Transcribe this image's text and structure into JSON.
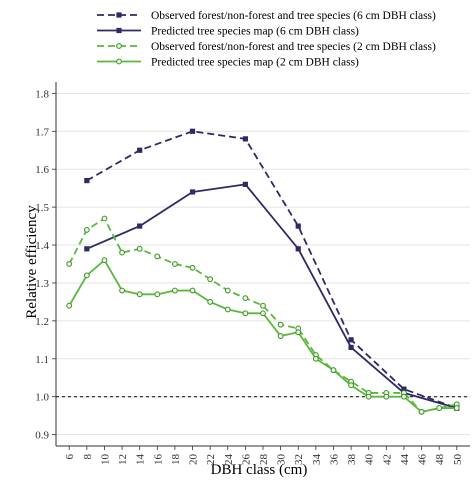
{
  "chart_data": {
    "type": "line",
    "xlabel": "DBH class (cm)",
    "ylabel": "Relative efficiency",
    "x_ticks": [
      6,
      8,
      10,
      12,
      14,
      16,
      18,
      20,
      22,
      24,
      26,
      28,
      30,
      32,
      34,
      36,
      38,
      40,
      42,
      44,
      46,
      48,
      50
    ],
    "y_ticks": [
      0.9,
      1.0,
      1.1,
      1.2,
      1.3,
      1.4,
      1.5,
      1.6,
      1.7,
      1.8
    ],
    "xlim": [
      4.5,
      51.5
    ],
    "ylim": [
      0.87,
      1.83
    ],
    "reference_line": 1.0,
    "grid": "horizontal",
    "legend_position": "top",
    "series": [
      {
        "name": "Observed forest/non-forest and tree species (6 cm DBH class)",
        "color": "#2e2a66",
        "dash": "dashed",
        "marker": "filled-square",
        "x": [
          8,
          14,
          20,
          26,
          32,
          38,
          44,
          50
        ],
        "y": [
          1.57,
          1.65,
          1.7,
          1.68,
          1.45,
          1.15,
          1.02,
          0.97
        ]
      },
      {
        "name": "Predicted tree species map (6 cm DBH class)",
        "color": "#2e2a66",
        "dash": "solid",
        "marker": "filled-square",
        "x": [
          8,
          14,
          20,
          26,
          32,
          38,
          44,
          50
        ],
        "y": [
          1.39,
          1.45,
          1.54,
          1.56,
          1.39,
          1.13,
          1.01,
          0.97
        ]
      },
      {
        "name": "Observed forest/non-forest and tree species (2 cm DBH class)",
        "color": "#5ab83c",
        "dash": "dashed",
        "marker": "open-circle",
        "x": [
          6,
          8,
          10,
          12,
          14,
          16,
          18,
          20,
          22,
          24,
          26,
          28,
          30,
          32,
          34,
          36,
          38,
          40,
          42,
          44,
          46,
          48,
          50
        ],
        "y": [
          1.35,
          1.44,
          1.47,
          1.38,
          1.39,
          1.37,
          1.35,
          1.34,
          1.31,
          1.28,
          1.26,
          1.24,
          1.19,
          1.18,
          1.11,
          1.07,
          1.04,
          1.01,
          1.01,
          1.01,
          0.96,
          0.97,
          0.98
        ]
      },
      {
        "name": "Predicted tree species map (2 cm DBH class)",
        "color": "#5ab83c",
        "dash": "solid",
        "marker": "open-circle",
        "x": [
          6,
          8,
          10,
          12,
          14,
          16,
          18,
          20,
          22,
          24,
          26,
          28,
          30,
          32,
          34,
          36,
          38,
          40,
          42,
          44,
          46,
          48,
          50
        ],
        "y": [
          1.24,
          1.32,
          1.36,
          1.28,
          1.27,
          1.27,
          1.28,
          1.28,
          1.25,
          1.23,
          1.22,
          1.22,
          1.16,
          1.17,
          1.1,
          1.07,
          1.03,
          1.0,
          1.0,
          1.0,
          0.96,
          0.97,
          0.97
        ]
      }
    ]
  }
}
